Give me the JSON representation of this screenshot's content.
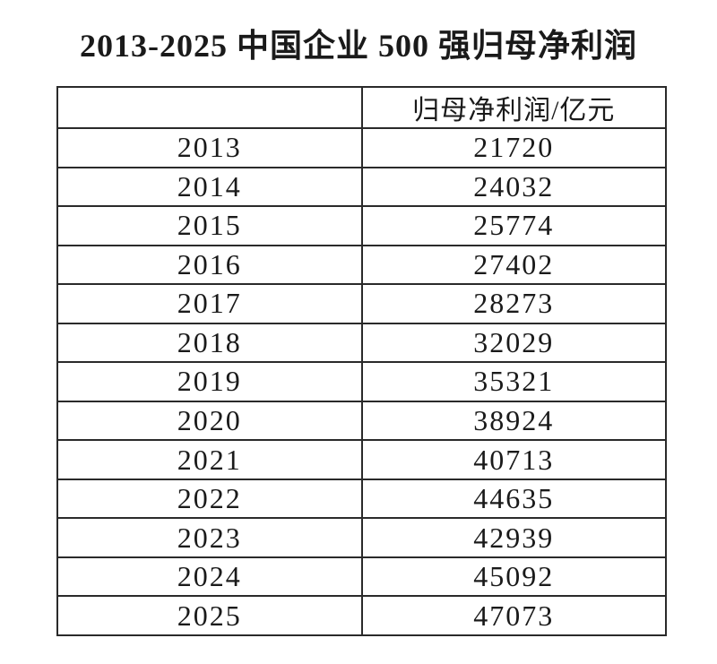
{
  "page": {
    "title": "2013-2025 中国企业 500 强归母净利润"
  },
  "table": {
    "header": {
      "col1": "",
      "col2": "归母净利润/亿元"
    },
    "rows": [
      {
        "year": "2013",
        "value": "21720"
      },
      {
        "year": "2014",
        "value": "24032"
      },
      {
        "year": "2015",
        "value": "25774"
      },
      {
        "year": "2016",
        "value": "27402"
      },
      {
        "year": "2017",
        "value": "28273"
      },
      {
        "year": "2018",
        "value": "32029"
      },
      {
        "year": "2019",
        "value": "35321"
      },
      {
        "year": "2020",
        "value": "38924"
      },
      {
        "year": "2021",
        "value": "40713"
      },
      {
        "year": "2022",
        "value": "44635"
      },
      {
        "year": "2023",
        "value": "42939"
      },
      {
        "year": "2024",
        "value": "45092"
      },
      {
        "year": "2025",
        "value": "47073"
      }
    ]
  },
  "chart_data": {
    "type": "table",
    "title": "2013-2025 中国企业 500 强归母净利润",
    "columns": [
      "",
      "归母净利润/亿元"
    ],
    "categories": [
      2013,
      2014,
      2015,
      2016,
      2017,
      2018,
      2019,
      2020,
      2021,
      2022,
      2023,
      2024,
      2025
    ],
    "values": [
      21720,
      24032,
      25774,
      27402,
      28273,
      32029,
      35321,
      38924,
      40713,
      44635,
      42939,
      45092,
      47073
    ],
    "ylabel": "归母净利润/亿元",
    "colors": {
      "text": "#1a1a1a",
      "border": "#2a2a2a",
      "background": "#ffffff"
    }
  }
}
